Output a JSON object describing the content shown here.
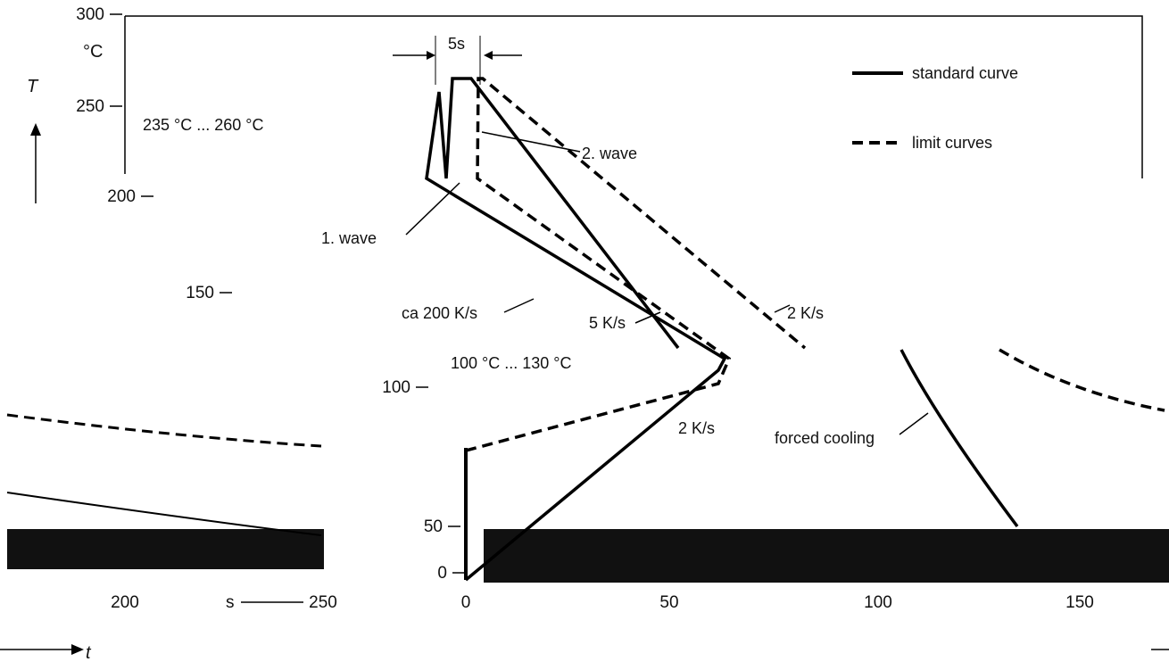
{
  "chart_data": {
    "type": "line",
    "y_axis": {
      "symbol": "T",
      "unit": "°C",
      "ticks": [
        300,
        250,
        200,
        150,
        100,
        50,
        0
      ]
    },
    "x_axis": {
      "symbol": "t",
      "unit": "s",
      "ticks": [
        0,
        50,
        100,
        150,
        200,
        250
      ]
    },
    "legend": {
      "position": "top-right",
      "entries": [
        {
          "label": "standard curve",
          "style": "solid"
        },
        {
          "label": "limit curves",
          "style": "dashed"
        }
      ]
    },
    "annotations": {
      "dwell_time": "5s",
      "peak_range": "235 °C ... 260 °C",
      "preheat_range": "100 °C ... 130 °C",
      "wave1": "1. wave",
      "wave2": "2. wave",
      "rate1": "ca 200 K/s",
      "rate2": "5 K/s",
      "rate3": "2 K/s",
      "rate4": "2 K/s",
      "forced_cooling": "forced cooling"
    },
    "series": [
      {
        "name": "standard curve",
        "style": "solid",
        "x": [
          0,
          60,
          62,
          63,
          64,
          65,
          66,
          72,
          108
        ],
        "y": [
          0,
          100,
          112,
          250,
          160,
          255,
          265,
          265,
          100
        ]
      },
      {
        "name": "limit curves",
        "style": "dashed",
        "x": [
          0,
          60,
          62,
          64,
          66,
          67,
          68,
          74,
          135
        ],
        "y": [
          25,
          130,
          140,
          250,
          160,
          255,
          265,
          265,
          100
        ]
      }
    ]
  }
}
